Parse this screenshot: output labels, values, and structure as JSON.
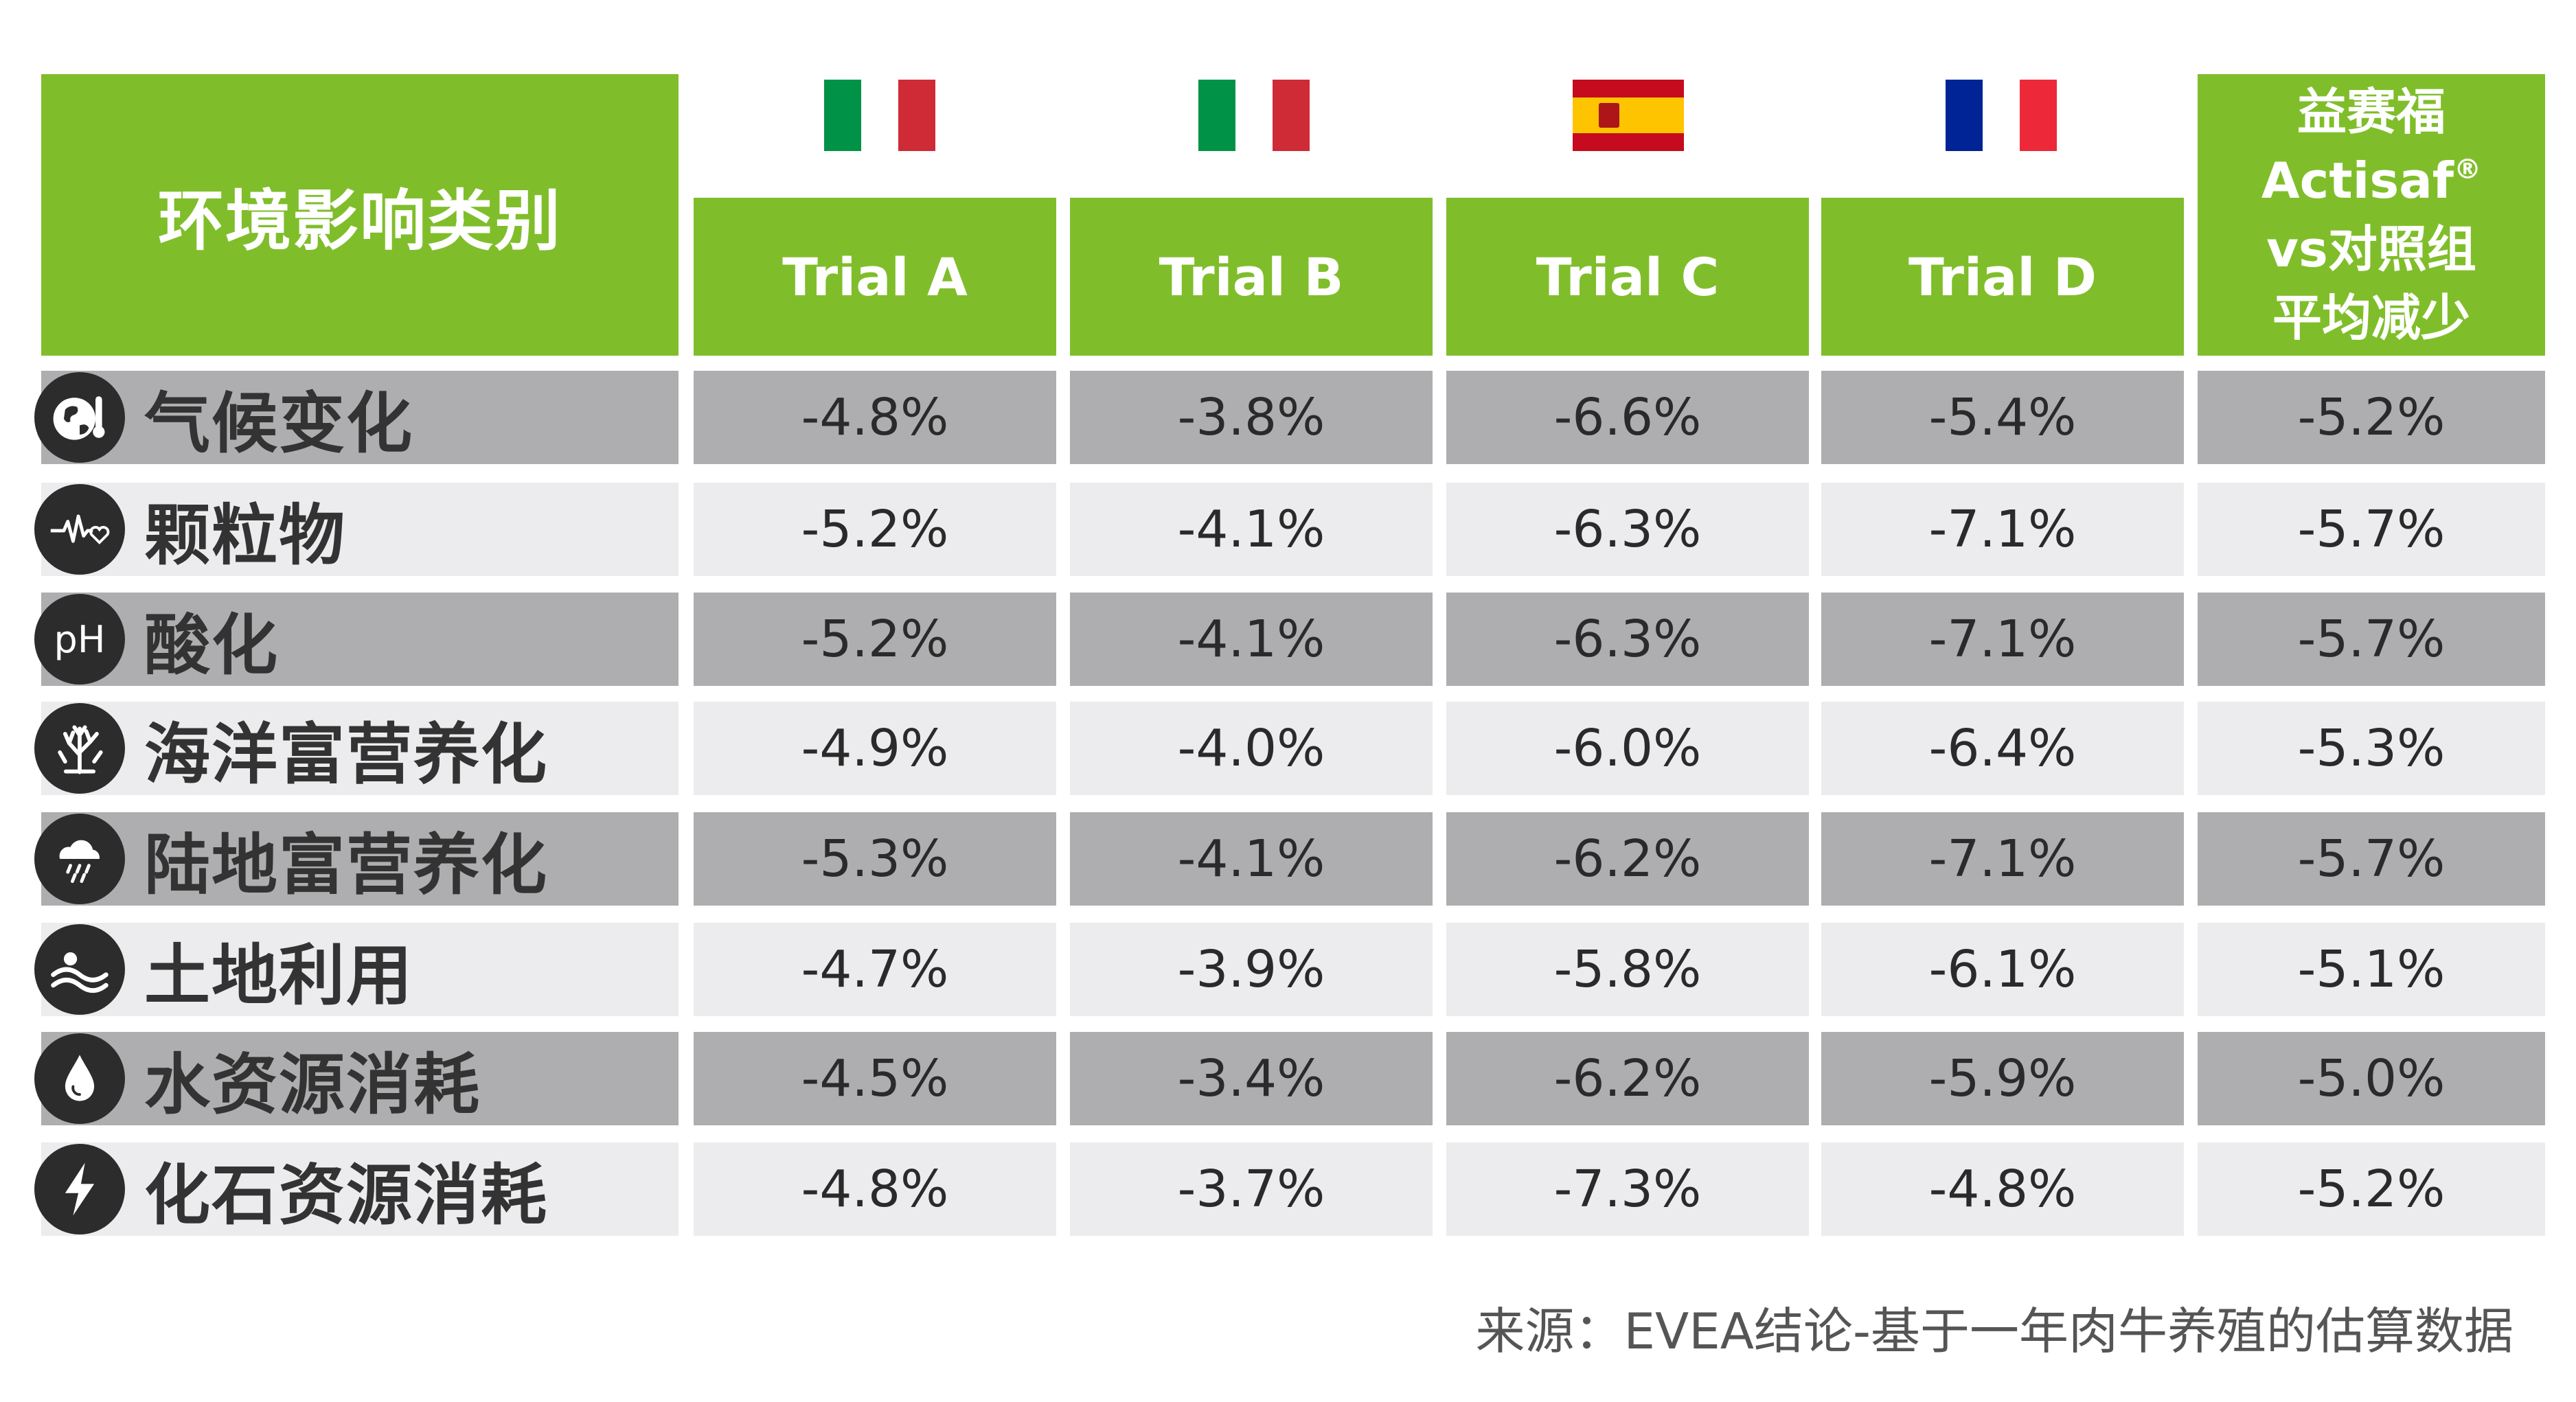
{
  "header": {
    "category_label": "环境影响类别",
    "trials": [
      {
        "label": "Trial A",
        "flag": "italy-flag",
        "flag_colors": [
          "#009246",
          "#ffffff",
          "#ce2b37"
        ]
      },
      {
        "label": "Trial B",
        "flag": "italy-flag",
        "flag_colors": [
          "#009246",
          "#ffffff",
          "#ce2b37"
        ]
      },
      {
        "label": "Trial C",
        "flag": "spain-flag",
        "flag_colors": [
          "#c60b1e",
          "#ffc400",
          "#c60b1e"
        ]
      },
      {
        "label": "Trial D",
        "flag": "france-flag",
        "flag_colors": [
          "#002395",
          "#ffffff",
          "#ed2939"
        ]
      }
    ],
    "avg_label": {
      "line1": "益赛福",
      "line2": "Actisaf",
      "line2_mark": "®",
      "line3": "vs对照组",
      "line4": "平均减少"
    }
  },
  "colors": {
    "header_green": "#7fbe2a",
    "row_dark": "#aeaeb0",
    "row_light": "#ececee",
    "icon_bg": "#2c2c2c"
  },
  "chart_data": {
    "type": "table",
    "columns": [
      "Trial A",
      "Trial B",
      "Trial C",
      "Trial D",
      "益赛福 Actisaf® vs对照组平均减少"
    ],
    "rows": [
      {
        "category": "气候变化",
        "icon": "globe-thermometer-icon",
        "values": [
          "-4.8%",
          "-3.8%",
          "-6.6%",
          "-5.4%",
          "-5.2%"
        ]
      },
      {
        "category": "颗粒物",
        "icon": "pulse-heart-icon",
        "values": [
          "-5.2%",
          "-4.1%",
          "-6.3%",
          "-7.1%",
          "-5.7%"
        ]
      },
      {
        "category": "酸化",
        "icon": "ph-icon",
        "icon_text": "pH",
        "values": [
          "-5.2%",
          "-4.1%",
          "-6.3%",
          "-7.1%",
          "-5.7%"
        ]
      },
      {
        "category": "海洋富营养化",
        "icon": "coral-icon",
        "values": [
          "-4.9%",
          "-4.0%",
          "-6.0%",
          "-6.4%",
          "-5.3%"
        ]
      },
      {
        "category": "陆地富营养化",
        "icon": "rain-cloud-icon",
        "values": [
          "-5.3%",
          "-4.1%",
          "-6.2%",
          "-7.1%",
          "-5.7%"
        ]
      },
      {
        "category": "土地利用",
        "icon": "land-waves-icon",
        "values": [
          "-4.7%",
          "-3.9%",
          "-5.8%",
          "-6.1%",
          "-5.1%"
        ]
      },
      {
        "category": "水资源消耗",
        "icon": "water-drop-icon",
        "values": [
          "-4.5%",
          "-3.4%",
          "-6.2%",
          "-5.9%",
          "-5.0%"
        ]
      },
      {
        "category": "化石资源消耗",
        "icon": "lightning-icon",
        "values": [
          "-4.8%",
          "-3.7%",
          "-7.3%",
          "-4.8%",
          "-5.2%"
        ]
      }
    ]
  },
  "source": "来源：EVEA结论-基于一年肉牛养殖的估算数据"
}
